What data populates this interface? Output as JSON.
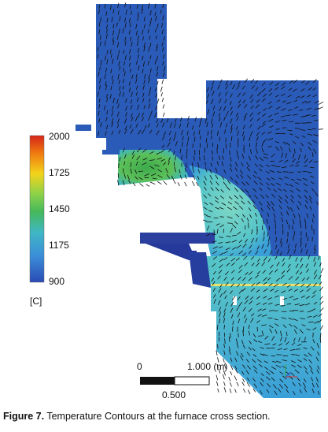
{
  "figure": {
    "caption_label": "Figure 7.",
    "caption_text": " Temperature Contours at the furnace cross section.",
    "colors": {
      "bg": "#2b5bb8",
      "mid": "#3aa0d8",
      "warm": "#6fd0c8",
      "hot": "#49b45a",
      "dark": "#20358e",
      "arrow": "#101010"
    }
  },
  "colorbar": {
    "ticks": [
      "2000",
      "1725",
      "1450",
      "1175",
      "900"
    ],
    "unit": "[C]",
    "stops": [
      "#d62418",
      "#f07a10",
      "#f2d41a",
      "#8bd14a",
      "#45b95a",
      "#3fb7c4",
      "#3b8ed8",
      "#2a4bb5"
    ]
  },
  "scalebar": {
    "left_label": "0",
    "right_label": "1.000 (m)",
    "mid_label": "0.500"
  }
}
